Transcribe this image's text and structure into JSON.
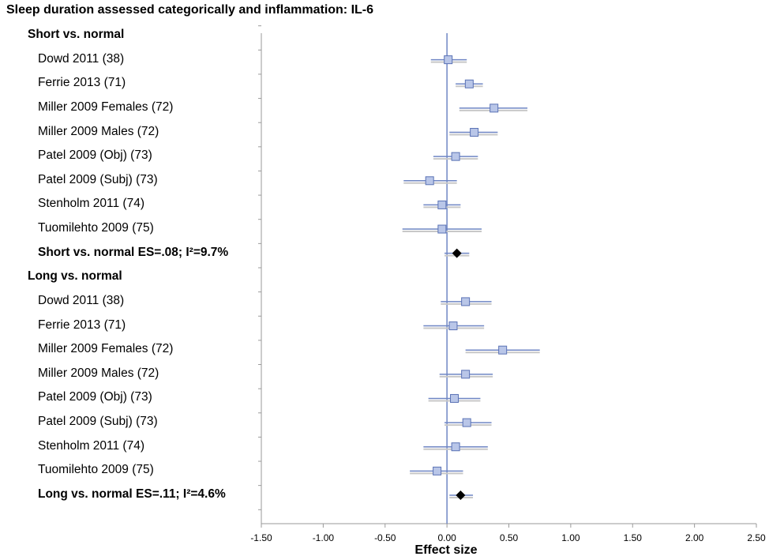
{
  "title": "Sleep duration assessed categorically and inflammation: IL-6",
  "chart_data": {
    "type": "forest",
    "title": "Sleep duration assessed categorically and inflammation: IL-6",
    "xlabel": "Effect size",
    "xlim": [
      -1.5,
      2.5
    ],
    "xticks": [
      "-1.50",
      "-1.00",
      "-0.50",
      "0.00",
      "0.50",
      "1.00",
      "1.50",
      "2.00",
      "2.50"
    ],
    "reference_line": 0,
    "grid": false,
    "rows": [
      {
        "kind": "header",
        "label": "Short vs. normal"
      },
      {
        "kind": "study",
        "label": "Dowd 2011 (38)",
        "es": 0.01,
        "lo": -0.13,
        "hi": 0.16
      },
      {
        "kind": "study",
        "label": "Ferrie 2013 (71)",
        "es": 0.18,
        "lo": 0.07,
        "hi": 0.29
      },
      {
        "kind": "study",
        "label": "Miller 2009 Females (72)",
        "es": 0.38,
        "lo": 0.1,
        "hi": 0.65
      },
      {
        "kind": "study",
        "label": "Miller 2009 Males (72)",
        "es": 0.22,
        "lo": 0.02,
        "hi": 0.41
      },
      {
        "kind": "study",
        "label": "Patel 2009 (Obj) (73)",
        "es": 0.07,
        "lo": -0.11,
        "hi": 0.25
      },
      {
        "kind": "study",
        "label": "Patel 2009 (Subj) (73)",
        "es": -0.14,
        "lo": -0.35,
        "hi": 0.08
      },
      {
        "kind": "study",
        "label": "Stenholm 2011 (74)",
        "es": -0.04,
        "lo": -0.19,
        "hi": 0.11
      },
      {
        "kind": "study",
        "label": "Tuomilehto 2009 (75)",
        "es": -0.04,
        "lo": -0.36,
        "hi": 0.28
      },
      {
        "kind": "summary",
        "label": "Short vs. normal ES=.08; I²=9.7%",
        "es": 0.08,
        "lo": -0.02,
        "hi": 0.18
      },
      {
        "kind": "header",
        "label": "Long vs. normal"
      },
      {
        "kind": "study",
        "label": "Dowd 2011 (38)",
        "es": 0.15,
        "lo": -0.05,
        "hi": 0.36
      },
      {
        "kind": "study",
        "label": "Ferrie 2013 (71)",
        "es": 0.05,
        "lo": -0.19,
        "hi": 0.3
      },
      {
        "kind": "study",
        "label": "Miller 2009 Females (72)",
        "es": 0.45,
        "lo": 0.15,
        "hi": 0.75
      },
      {
        "kind": "study",
        "label": "Miller 2009 Males (72)",
        "es": 0.15,
        "lo": -0.06,
        "hi": 0.37
      },
      {
        "kind": "study",
        "label": "Patel 2009 (Obj) (73)",
        "es": 0.06,
        "lo": -0.15,
        "hi": 0.27
      },
      {
        "kind": "study",
        "label": "Patel 2009 (Subj) (73)",
        "es": 0.16,
        "lo": -0.02,
        "hi": 0.36
      },
      {
        "kind": "study",
        "label": "Stenholm 2011 (74)",
        "es": 0.07,
        "lo": -0.19,
        "hi": 0.33
      },
      {
        "kind": "study",
        "label": "Tuomilehto 2009 (75)",
        "es": -0.08,
        "lo": -0.3,
        "hi": 0.13
      },
      {
        "kind": "summary",
        "label": "Long vs. normal ES=.11; I²=4.6%",
        "es": 0.11,
        "lo": 0.02,
        "hi": 0.21
      }
    ],
    "colors": {
      "ci_line": "#6f86c4",
      "ci_shadow": "#c8c8c8",
      "marker_fill": "#b9c6e8",
      "marker_stroke": "#5a72b5",
      "summary_marker": "#000000",
      "reference_line": "#6f86c4",
      "axis": "#9a9a9a"
    }
  }
}
